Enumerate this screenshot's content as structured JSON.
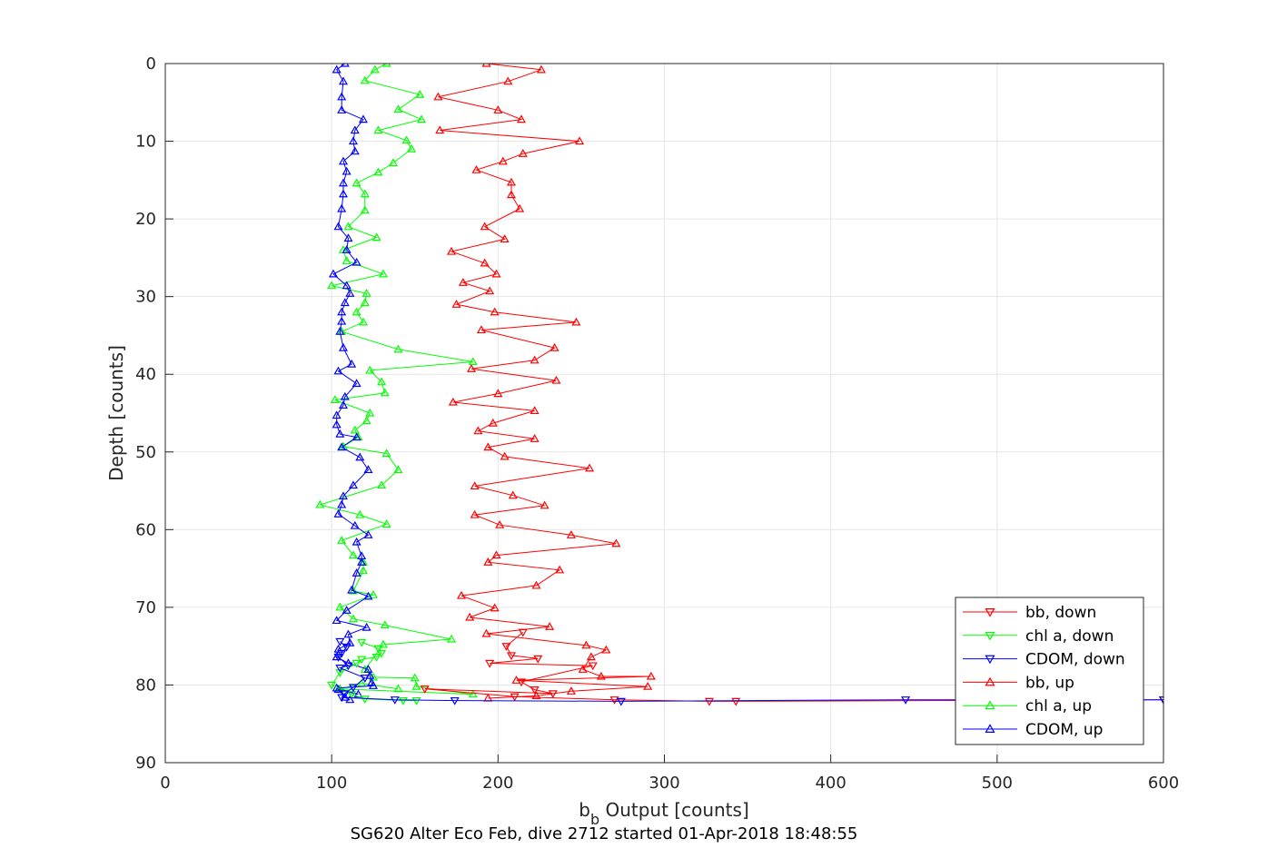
{
  "chart_data": {
    "type": "line",
    "title": "",
    "xlabel_main": "b",
    "xlabel_sub": "b",
    "xlabel_rest": " Output [counts]",
    "ylabel": "Depth [counts]",
    "caption": "SG620 Alter Eco Feb, dive 2712 started 01-Apr-2018 18:48:55",
    "xlim": [
      0,
      600
    ],
    "ylim": [
      0,
      90
    ],
    "y_reversed": true,
    "grid": true,
    "legend_position": "bottom-right",
    "xticks": [
      "0",
      "100",
      "200",
      "300",
      "400",
      "500",
      "600"
    ],
    "yticks": [
      "0",
      "10",
      "20",
      "30",
      "40",
      "50",
      "60",
      "70",
      "80",
      "90"
    ],
    "series": [
      {
        "name": "bb, down",
        "color": "#ff0000",
        "marker": "triangle-down",
        "points": [
          [
            215,
            73.2
          ],
          [
            205,
            75
          ],
          [
            208,
            76.2
          ],
          [
            224,
            76.6
          ],
          [
            195,
            77.2
          ],
          [
            257,
            77.5
          ],
          [
            214,
            79.6
          ],
          [
            222,
            80.6
          ],
          [
            233,
            81.1
          ],
          [
            156,
            80.5
          ],
          [
            210,
            81.5
          ],
          [
            270,
            81.9
          ],
          [
            327,
            82.1
          ],
          [
            343,
            82.1
          ],
          [
            600,
            81.9
          ]
        ]
      },
      {
        "name": "chl a, down",
        "color": "#00ff00",
        "marker": "triangle-down",
        "points": [
          [
            118,
            74.5
          ],
          [
            128,
            75.3
          ],
          [
            130,
            75.9
          ],
          [
            127,
            76.4
          ],
          [
            118,
            76.7
          ],
          [
            115,
            77.2
          ],
          [
            105,
            78.4
          ],
          [
            100,
            80
          ],
          [
            112,
            81.2
          ],
          [
            120,
            81.8
          ],
          [
            143,
            82
          ],
          [
            151,
            82
          ]
        ]
      },
      {
        "name": "CDOM, down",
        "color": "#0000ff",
        "marker": "triangle-down",
        "points": [
          [
            105,
            74.4
          ],
          [
            109,
            75.1
          ],
          [
            106,
            75.9
          ],
          [
            104,
            76.4
          ],
          [
            110,
            77.5
          ],
          [
            105,
            77.8
          ],
          [
            120,
            79.1
          ],
          [
            113,
            80.3
          ],
          [
            108,
            81.1
          ],
          [
            106,
            81.6
          ],
          [
            138,
            81.9
          ],
          [
            174,
            82
          ],
          [
            274,
            82.1
          ],
          [
            445,
            81.9
          ],
          [
            600,
            81.9
          ]
        ]
      },
      {
        "name": "bb, up",
        "color": "#ff0000",
        "marker": "triangle-up",
        "points": [
          [
            193,
            0
          ],
          [
            226,
            0.8
          ],
          [
            206,
            2.3
          ],
          [
            164,
            4.3
          ],
          [
            200,
            6
          ],
          [
            214,
            7.2
          ],
          [
            165,
            8.6
          ],
          [
            249,
            10
          ],
          [
            215,
            11.6
          ],
          [
            203,
            12.6
          ],
          [
            187,
            13.7
          ],
          [
            208,
            15.3
          ],
          [
            208,
            16.9
          ],
          [
            213,
            18.7
          ],
          [
            192,
            21
          ],
          [
            204,
            22.6
          ],
          [
            172,
            24.2
          ],
          [
            192,
            25.7
          ],
          [
            199,
            27.1
          ],
          [
            179,
            28.2
          ],
          [
            195,
            29.3
          ],
          [
            175,
            31
          ],
          [
            198,
            32
          ],
          [
            247,
            33.3
          ],
          [
            190,
            34.3
          ],
          [
            234,
            36.6
          ],
          [
            222,
            38.2
          ],
          [
            184,
            39.3
          ],
          [
            235,
            40.8
          ],
          [
            200,
            42.5
          ],
          [
            173,
            43.6
          ],
          [
            222,
            44.7
          ],
          [
            197,
            46.3
          ],
          [
            188,
            47.3
          ],
          [
            222,
            48.3
          ],
          [
            194,
            49.4
          ],
          [
            204,
            50.6
          ],
          [
            255,
            52.1
          ],
          [
            186,
            54.4
          ],
          [
            209,
            55.6
          ],
          [
            228,
            56.9
          ],
          [
            186,
            58.1
          ],
          [
            201,
            59.4
          ],
          [
            244,
            60.7
          ],
          [
            271,
            61.8
          ],
          [
            199,
            63.3
          ],
          [
            194,
            64.2
          ],
          [
            237,
            65.2
          ],
          [
            223,
            67.2
          ],
          [
            178,
            68.5
          ],
          [
            198,
            70.1
          ],
          [
            183,
            71.3
          ],
          [
            231,
            72.5
          ],
          [
            193,
            73.4
          ],
          [
            253,
            74.9
          ],
          [
            265,
            75.5
          ],
          [
            256,
            76.4
          ],
          [
            251,
            78
          ],
          [
            262,
            78.9
          ],
          [
            292,
            78.9
          ],
          [
            211,
            79.4
          ],
          [
            290,
            80.2
          ],
          [
            244,
            80.8
          ],
          [
            223,
            81.4
          ],
          [
            194,
            81.7
          ]
        ]
      },
      {
        "name": "chl a, up",
        "color": "#00ff00",
        "marker": "triangle-up",
        "points": [
          [
            133,
            0
          ],
          [
            126,
            0.8
          ],
          [
            120,
            2.2
          ],
          [
            153,
            4
          ],
          [
            140,
            5.9
          ],
          [
            154,
            7.2
          ],
          [
            128,
            8.6
          ],
          [
            145,
            9.9
          ],
          [
            148,
            11
          ],
          [
            137,
            12.8
          ],
          [
            128,
            14
          ],
          [
            115,
            15.4
          ],
          [
            120,
            16.8
          ],
          [
            120,
            18.9
          ],
          [
            110,
            21
          ],
          [
            127,
            22.4
          ],
          [
            107,
            24
          ],
          [
            109,
            25.4
          ],
          [
            131,
            27.1
          ],
          [
            100,
            28.6
          ],
          [
            121,
            29.6
          ],
          [
            120,
            30.8
          ],
          [
            115,
            32
          ],
          [
            119,
            33.3
          ],
          [
            106,
            34.5
          ],
          [
            140,
            36.8
          ],
          [
            185,
            38.4
          ],
          [
            123,
            39.5
          ],
          [
            130,
            41
          ],
          [
            132,
            42.4
          ],
          [
            102,
            43.3
          ],
          [
            123,
            45
          ],
          [
            121,
            46
          ],
          [
            114,
            47.2
          ],
          [
            116,
            48.1
          ],
          [
            107,
            49.3
          ],
          [
            133,
            50.2
          ],
          [
            140,
            52.3
          ],
          [
            130,
            54.3
          ],
          [
            93,
            56.8
          ],
          [
            117,
            58.1
          ],
          [
            133,
            59.3
          ],
          [
            106,
            61.4
          ],
          [
            113,
            63.3
          ],
          [
            119,
            64.2
          ],
          [
            119,
            65.3
          ],
          [
            113,
            67.9
          ],
          [
            125,
            68.4
          ],
          [
            105,
            70
          ],
          [
            113,
            71.5
          ],
          [
            132,
            72.3
          ],
          [
            172,
            74.1
          ],
          [
            131,
            74.8
          ],
          [
            120,
            78
          ],
          [
            125,
            79
          ],
          [
            150,
            79.1
          ],
          [
            151,
            80.2
          ],
          [
            185,
            81.2
          ],
          [
            105,
            80.5
          ],
          [
            118,
            79.8
          ],
          [
            140,
            80.5
          ]
        ]
      },
      {
        "name": "CDOM, up",
        "color": "#0000ff",
        "marker": "triangle-up",
        "points": [
          [
            108,
            0
          ],
          [
            103,
            0.8
          ],
          [
            107,
            2.3
          ],
          [
            106,
            4.3
          ],
          [
            106,
            6
          ],
          [
            119,
            7.2
          ],
          [
            114,
            8.6
          ],
          [
            113,
            10
          ],
          [
            114,
            11.3
          ],
          [
            107,
            12.6
          ],
          [
            109,
            13.9
          ],
          [
            107,
            15.4
          ],
          [
            107,
            16.8
          ],
          [
            106,
            18.7
          ],
          [
            104,
            21
          ],
          [
            110,
            22.5
          ],
          [
            109,
            24
          ],
          [
            115,
            25.6
          ],
          [
            101,
            27.1
          ],
          [
            109,
            28.6
          ],
          [
            111,
            29.6
          ],
          [
            108,
            30.8
          ],
          [
            106,
            32
          ],
          [
            106,
            33.2
          ],
          [
            105,
            34.5
          ],
          [
            107,
            36.6
          ],
          [
            112,
            38.7
          ],
          [
            104,
            39.6
          ],
          [
            115,
            41.2
          ],
          [
            108,
            42.9
          ],
          [
            107,
            44
          ],
          [
            103,
            45.3
          ],
          [
            103,
            46.5
          ],
          [
            105,
            47.7
          ],
          [
            115,
            48.1
          ],
          [
            106,
            49.4
          ],
          [
            117,
            50.7
          ],
          [
            122,
            52.3
          ],
          [
            113,
            54.3
          ],
          [
            107,
            55.7
          ],
          [
            106,
            56.8
          ],
          [
            104,
            58
          ],
          [
            114,
            59.5
          ],
          [
            122,
            60.7
          ],
          [
            115,
            61.6
          ],
          [
            118,
            63.4
          ],
          [
            118,
            64.2
          ],
          [
            115,
            65.6
          ],
          [
            112,
            67.8
          ],
          [
            122,
            68.6
          ],
          [
            109,
            70.4
          ],
          [
            103,
            71.7
          ],
          [
            121,
            72.6
          ],
          [
            110,
            73.5
          ],
          [
            111,
            74.6
          ],
          [
            104,
            75.4
          ],
          [
            103,
            76.4
          ],
          [
            110,
            77.2
          ],
          [
            122,
            78
          ],
          [
            123,
            78.8
          ],
          [
            124,
            79.7
          ],
          [
            125,
            80.1
          ],
          [
            103,
            80.4
          ],
          [
            116,
            81.2
          ],
          [
            104,
            80.6
          ],
          [
            108,
            81.6
          ],
          [
            111,
            81.9
          ]
        ]
      }
    ]
  }
}
